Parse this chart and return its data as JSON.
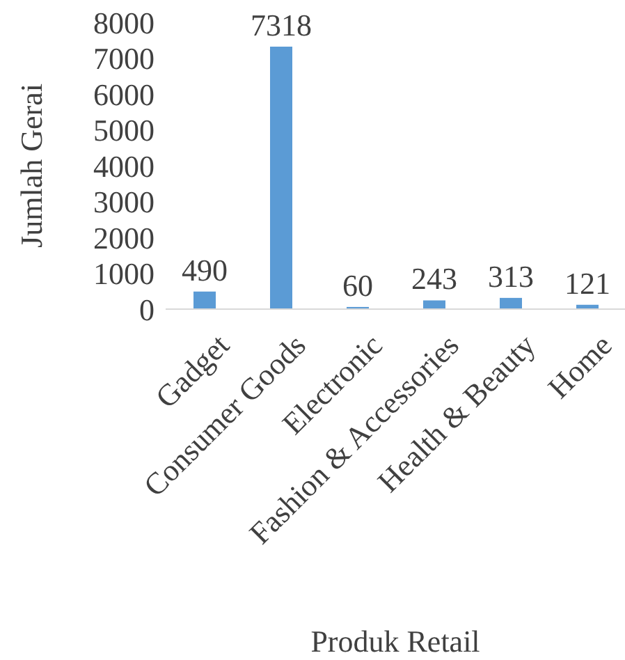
{
  "chart_data": {
    "type": "bar",
    "xlabel": "Produk Retail",
    "ylabel": "Jumlah Gerai",
    "categories": [
      "Gadget",
      "Consumer Goods",
      "Electronic",
      "Fashion & Accessories",
      "Health & Beauty",
      "Home"
    ],
    "values": [
      490,
      7318,
      60,
      243,
      313,
      121
    ],
    "color": "#5b9bd5",
    "ylim": [
      0,
      8000
    ],
    "yticks": [
      0,
      1000,
      2000,
      3000,
      4000,
      5000,
      6000,
      7000,
      8000
    ],
    "grid": false,
    "data_labels": true
  }
}
